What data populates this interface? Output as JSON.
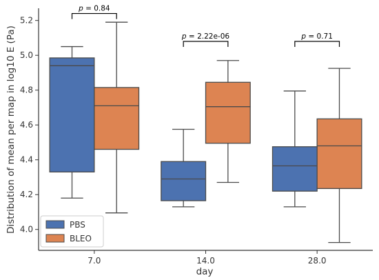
{
  "chart_data": {
    "type": "boxplot",
    "xlabel": "day",
    "ylabel": "Distribution of mean per map in log10 E (Pa)",
    "categories": [
      "7.0",
      "14.0",
      "28.0"
    ],
    "ylim": [
      3.88,
      5.27
    ],
    "yticks": [
      "4.0",
      "4.2",
      "4.4",
      "4.6",
      "4.8",
      "5.0",
      "5.2"
    ],
    "series": [
      {
        "name": "PBS",
        "color": "#4c72b0",
        "boxes": [
          {
            "whislo": 4.18,
            "q1": 4.33,
            "med": 4.94,
            "q3": 4.985,
            "whishi": 5.05
          },
          {
            "whislo": 4.13,
            "q1": 4.165,
            "med": 4.29,
            "q3": 4.39,
            "whishi": 4.575
          },
          {
            "whislo": 4.13,
            "q1": 4.22,
            "med": 4.365,
            "q3": 4.475,
            "whishi": 4.795
          }
        ]
      },
      {
        "name": "BLEO",
        "color": "#dd8452",
        "boxes": [
          {
            "whislo": 4.095,
            "q1": 4.46,
            "med": 4.71,
            "q3": 4.815,
            "whishi": 5.19
          },
          {
            "whislo": 4.27,
            "q1": 4.495,
            "med": 4.705,
            "q3": 4.845,
            "whishi": 4.97
          },
          {
            "whislo": 3.925,
            "q1": 4.235,
            "med": 4.48,
            "q3": 4.635,
            "whishi": 4.925
          }
        ]
      }
    ],
    "annotations": [
      {
        "category": "7.0",
        "text_p": "p",
        "text_value": " = 0.84",
        "y": 5.24
      },
      {
        "category": "14.0",
        "text_p": "p",
        "text_value": " = 2.22e-06",
        "y": 5.08
      },
      {
        "category": "28.0",
        "text_p": "p",
        "text_value": " = 0.71",
        "y": 5.08
      }
    ],
    "legend": {
      "position": "lower-left",
      "entries": [
        {
          "label": "PBS",
          "color": "#4c72b0"
        },
        {
          "label": "BLEO",
          "color": "#dd8452"
        }
      ]
    },
    "grid": false
  }
}
